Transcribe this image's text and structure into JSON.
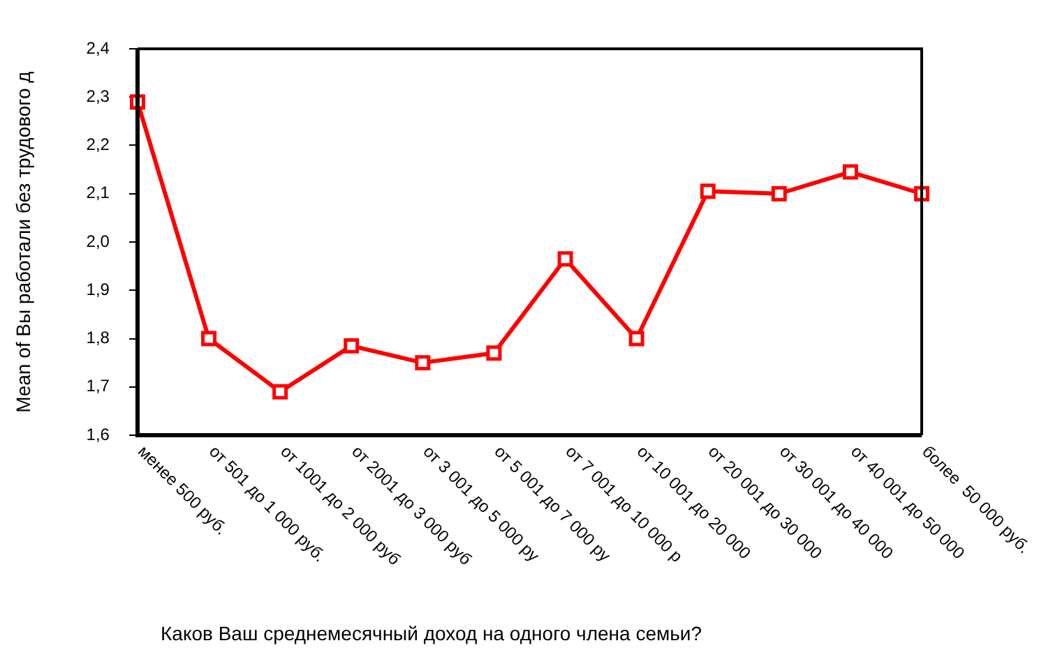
{
  "chart_data": {
    "type": "line",
    "xlabel": "Каков Ваш среднемесячный доход на одного члена семьи?",
    "ylabel": "Mean of Вы работали без трудового д",
    "categories": [
      "менее 500 руб.",
      "от 501 до 1 000 руб.",
      "от 1001 до 2 000 руб",
      "от 2001 до 3 000 руб",
      "от 3 001 до 5 000 ру",
      "от 5 001 до 7 000 ру",
      "от 7 001 до 10 000 р",
      "от 10 001 до 20 000",
      "от 20 001 до 30 000",
      "от 30 001 до 40 000",
      "от 40 001 до 50 000",
      "более  50 000 руб."
    ],
    "series": [
      {
        "color": "#ff0000",
        "values": [
          2.29,
          1.8,
          1.69,
          1.785,
          1.75,
          1.77,
          1.965,
          1.8,
          2.105,
          2.1,
          2.145,
          2.1
        ]
      }
    ],
    "ylim": [
      1.6,
      2.4
    ],
    "yticks": [
      {
        "value": 1.6,
        "label": "1,6"
      },
      {
        "value": 1.7,
        "label": "1,7"
      },
      {
        "value": 1.8,
        "label": "1,8"
      },
      {
        "value": 1.9,
        "label": "1,9"
      },
      {
        "value": 2.0,
        "label": "2,0"
      },
      {
        "value": 2.1,
        "label": "2,1"
      },
      {
        "value": 2.2,
        "label": "2,2"
      },
      {
        "value": 2.3,
        "label": "2,3"
      },
      {
        "value": 2.4,
        "label": "2,4"
      }
    ],
    "grid": false,
    "legend": false,
    "marker": "square",
    "line_style": "solid"
  }
}
